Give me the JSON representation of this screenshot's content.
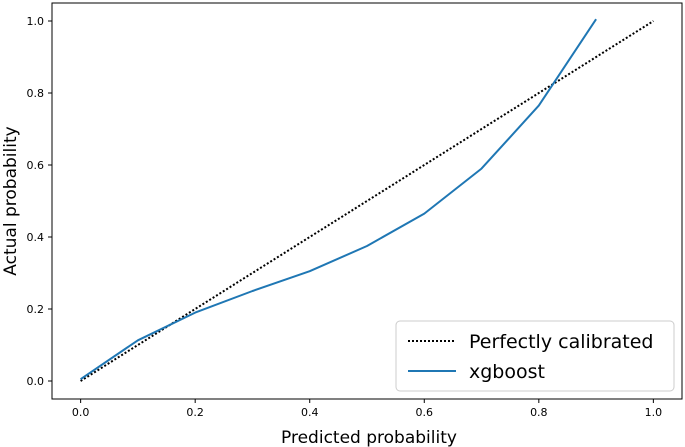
{
  "chart_data": {
    "type": "line",
    "title": "",
    "xlabel": "Predicted probability",
    "ylabel": "Actual probability",
    "xlim": [
      -0.05,
      1.05
    ],
    "ylim": [
      -0.05,
      1.05
    ],
    "xticks": [
      0.0,
      0.2,
      0.4,
      0.6,
      0.8,
      1.0
    ],
    "yticks": [
      0.0,
      0.2,
      0.4,
      0.6,
      0.8,
      1.0
    ],
    "xtick_labels": [
      "0.0",
      "0.2",
      "0.4",
      "0.6",
      "0.8",
      "1.0"
    ],
    "ytick_labels": [
      "0.0",
      "0.2",
      "0.4",
      "0.6",
      "0.8",
      "1.0"
    ],
    "grid": false,
    "legend_position": "bottom-right",
    "series": [
      {
        "name": "Perfectly calibrated",
        "style": "dotted",
        "color": "#000000",
        "x": [
          0.0,
          1.0
        ],
        "y": [
          0.0,
          1.0
        ]
      },
      {
        "name": "xgboost",
        "style": "solid",
        "color": "#1f77b4",
        "x": [
          0.0,
          0.1,
          0.2,
          0.3,
          0.4,
          0.5,
          0.6,
          0.7,
          0.8,
          0.9
        ],
        "y": [
          0.005,
          0.113,
          0.19,
          0.25,
          0.305,
          0.375,
          0.465,
          0.59,
          0.765,
          1.005
        ]
      }
    ]
  }
}
